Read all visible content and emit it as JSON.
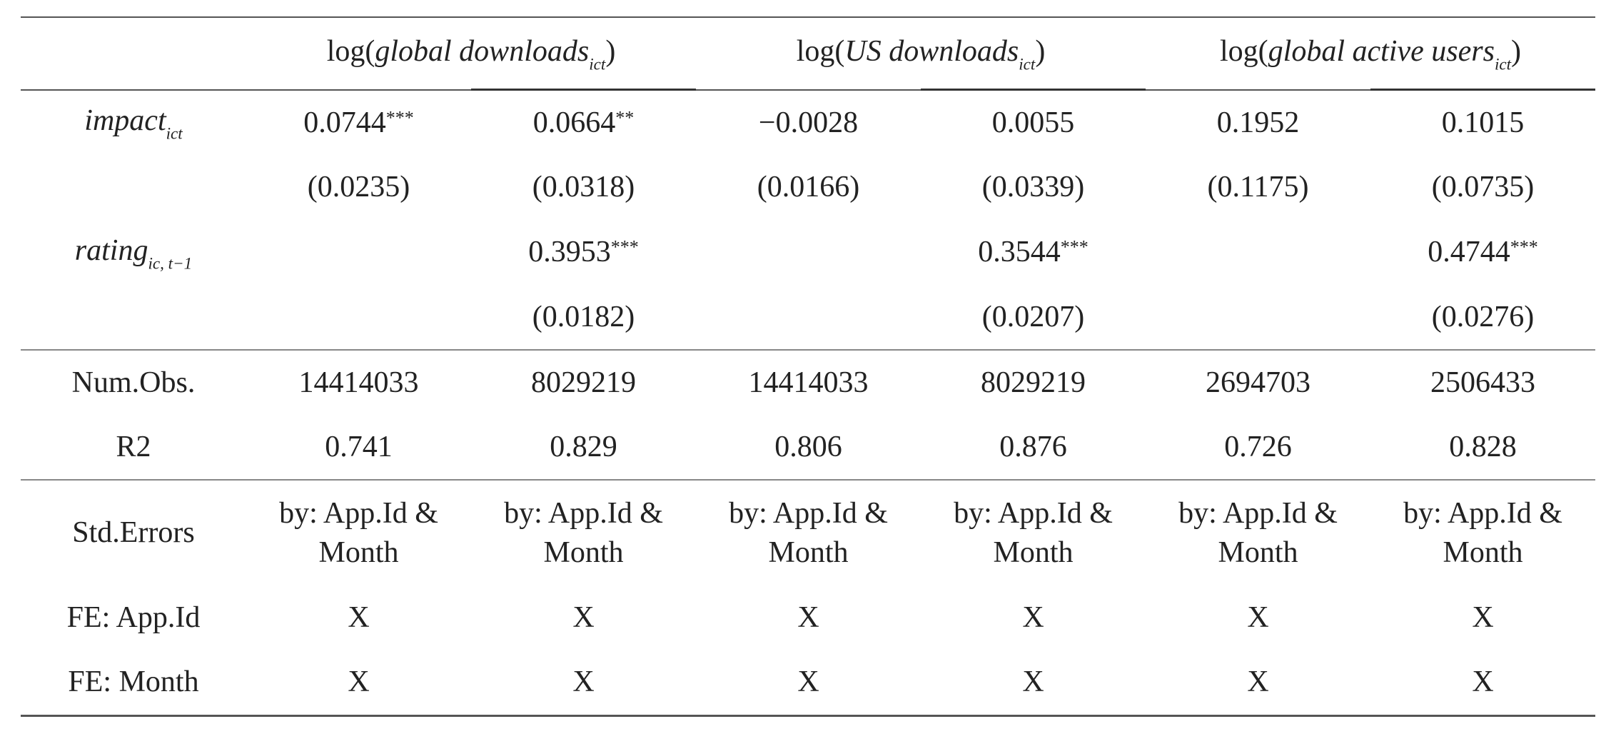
{
  "header": {
    "groups": [
      {
        "prefix": "log(",
        "var": "global downloads",
        "sub": "ict",
        "suffix": ")"
      },
      {
        "prefix": "log(",
        "var": "US downloads",
        "sub": "ict",
        "suffix": ")"
      },
      {
        "prefix": "log(",
        "var": "global active users",
        "sub": "ict",
        "suffix": ")"
      }
    ]
  },
  "sections": [
    [
      {
        "label": {
          "var": "impact",
          "sub": "ict"
        },
        "cells": [
          {
            "est": "0.0744",
            "stars": "***"
          },
          {
            "est": "0.0664",
            "stars": "**"
          },
          "−0.0028",
          "0.0055",
          "0.1952",
          "0.1015"
        ]
      },
      {
        "cells": [
          "(0.0235)",
          "(0.0318)",
          "(0.0166)",
          "(0.0339)",
          "(0.1175)",
          "(0.0735)"
        ]
      },
      {
        "label": {
          "var": "rating",
          "sub": "ic, t−1"
        },
        "cells": [
          null,
          {
            "est": "0.3953",
            "stars": "***"
          },
          null,
          {
            "est": "0.3544",
            "stars": "***"
          },
          null,
          {
            "est": "0.4744",
            "stars": "***"
          }
        ]
      },
      {
        "cells": [
          null,
          "(0.0182)",
          null,
          "(0.0207)",
          null,
          "(0.0276)"
        ]
      }
    ],
    [
      {
        "label": "Num.Obs.",
        "cells": [
          "14414033",
          "8029219",
          "14414033",
          "8029219",
          "2694703",
          "2506433"
        ]
      },
      {
        "label": "R2",
        "cells": [
          "0.741",
          "0.829",
          "0.806",
          "0.876",
          "0.726",
          "0.828"
        ]
      }
    ],
    [
      {
        "label": "Std.Errors",
        "cells": [
          "by: App.Id & Month",
          "by: App.Id & Month",
          "by: App.Id & Month",
          "by: App.Id & Month",
          "by: App.Id & Month",
          "by: App.Id & Month"
        ]
      },
      {
        "label": "FE: App.Id",
        "cells": [
          "X",
          "X",
          "X",
          "X",
          "X",
          "X"
        ]
      },
      {
        "label": "FE: Month",
        "cells": [
          "X",
          "X",
          "X",
          "X",
          "X",
          "X"
        ]
      }
    ]
  ]
}
